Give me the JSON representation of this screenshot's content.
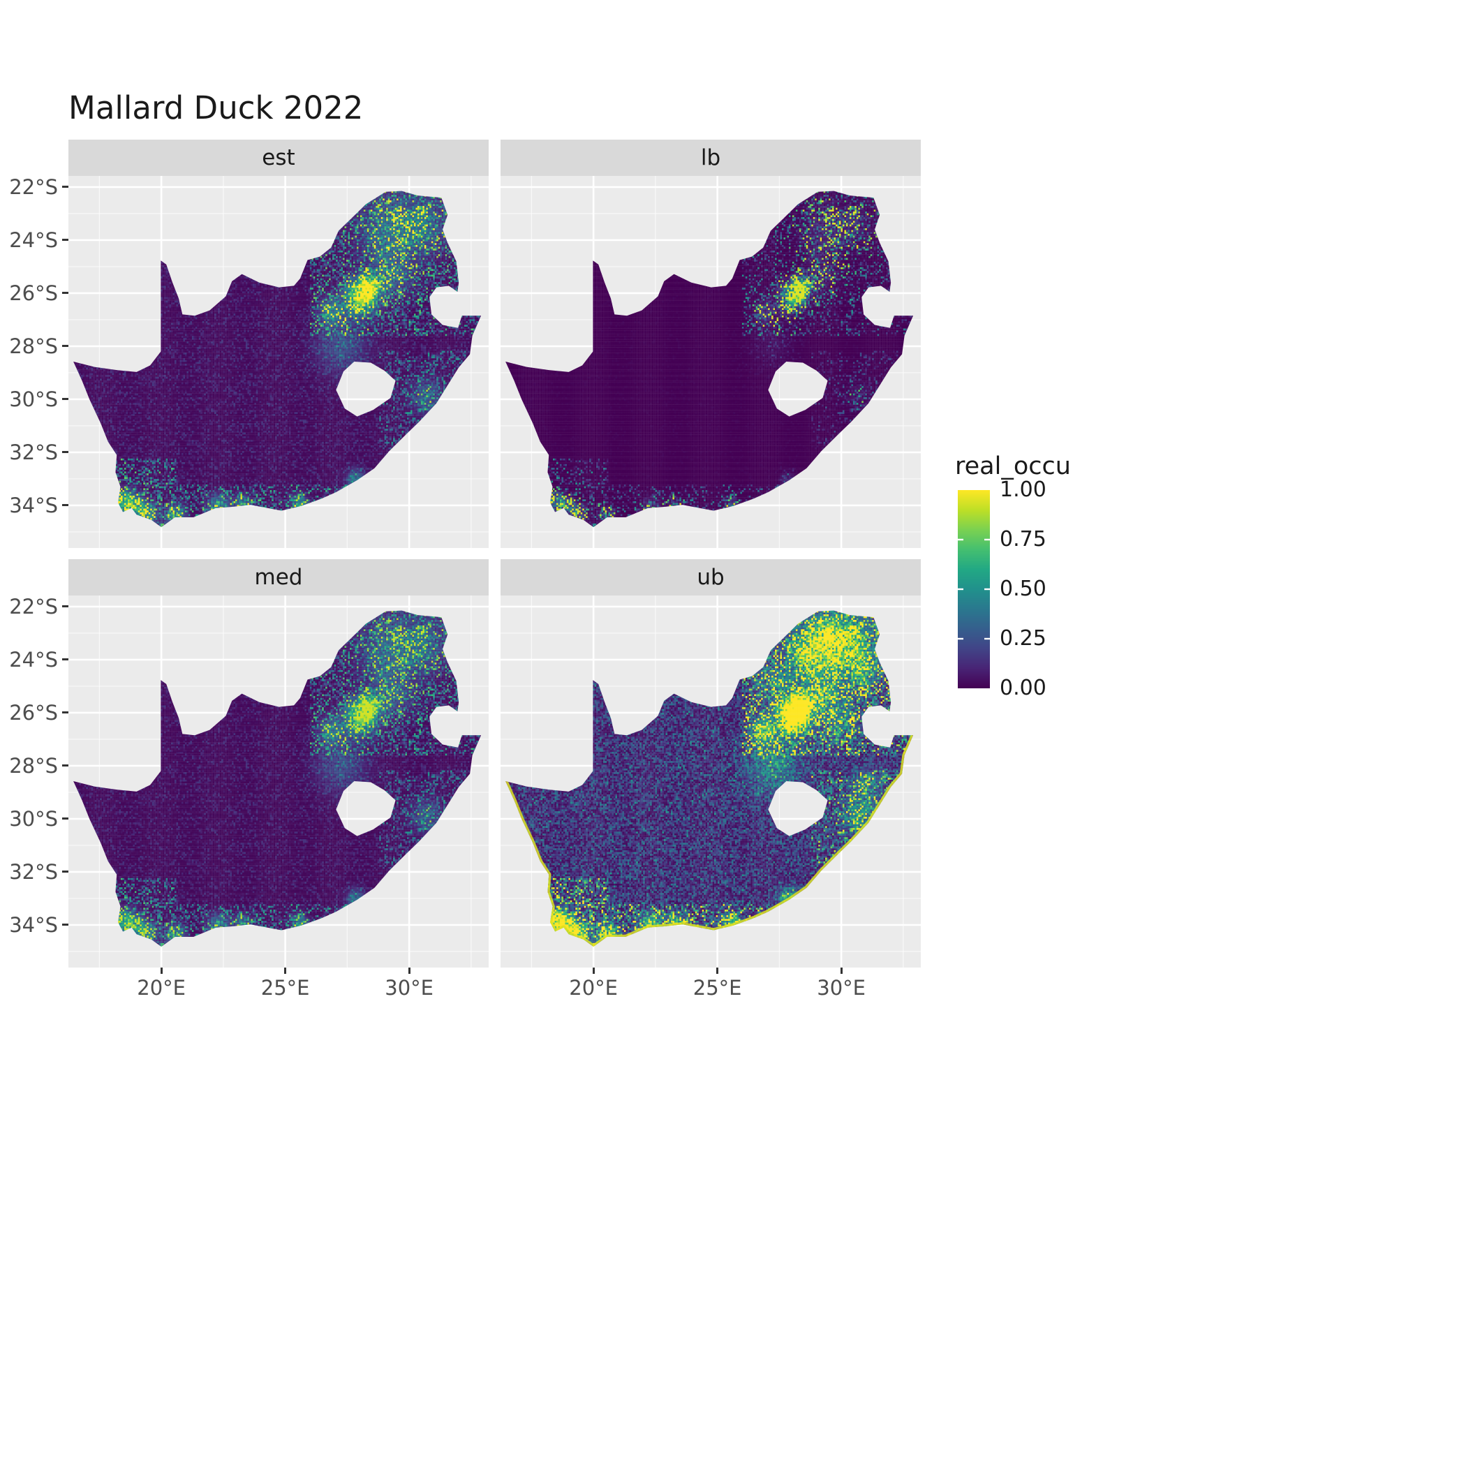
{
  "chart": {
    "title": "Mallard Duck 2022",
    "facets": [
      {
        "label": "est"
      },
      {
        "label": "lb"
      },
      {
        "label": "med"
      },
      {
        "label": "ub"
      }
    ],
    "axes": {
      "y_ticks": [
        "22°S",
        "24°S",
        "26°S",
        "28°S",
        "30°S",
        "32°S",
        "34°S"
      ],
      "x_ticks": [
        "20°E",
        "25°E",
        "30°E"
      ]
    },
    "legend": {
      "title": "real_occu",
      "ticks": [
        "1.00",
        "0.75",
        "0.50",
        "0.25",
        "0.00"
      ]
    }
  },
  "theme": {
    "panel_background": "#EBEBEB",
    "strip_background": "#D9D9D9",
    "grid_color": "#FFFFFF",
    "axis_text_color": "#4D4D4D",
    "tick_mark_color": "#333333",
    "title_color": "#1A1A1A",
    "viridis_low": "#440154",
    "viridis_high": "#FDE725",
    "coast_rim_color": "#DDDF21"
  },
  "chart_data": {
    "type": "heatmap",
    "title": "Mallard Duck 2022",
    "region": "South Africa (Lesotho shown as a hole in the raster)",
    "facets": [
      "est",
      "lb",
      "med",
      "ub"
    ],
    "fill_variable": "real_occu",
    "fill_range": [
      0.0,
      1.0
    ],
    "legend_breaks": [
      1.0,
      0.75,
      0.5,
      0.25,
      0.0
    ],
    "colormap": "viridis",
    "x_axis": {
      "label_suffix": "°E",
      "breaks": [
        20,
        25,
        30
      ],
      "range": [
        16.3,
        33.2
      ]
    },
    "y_axis": {
      "label_suffix": "°S",
      "breaks": [
        22,
        24,
        26,
        28,
        30,
        32,
        34
      ],
      "range": [
        21.6,
        35.6
      ]
    },
    "hotspots": [
      {
        "name": "Gauteng (Johannesburg/Pretoria)",
        "lon_e": 28.1,
        "lat_s": 26.1,
        "peak_real_occu": 1.0,
        "present_in": [
          "est",
          "lb",
          "med",
          "ub"
        ]
      },
      {
        "name": "Cape Town / south-western coast",
        "lon_e": 18.7,
        "lat_s": 33.9,
        "peak_real_occu": 0.9,
        "present_in": [
          "est",
          "lb",
          "med",
          "ub"
        ]
      },
      {
        "name": "Southern Cape coastline",
        "lon_e": 22.4,
        "lat_s": 34.0,
        "peak_real_occu": 0.6,
        "present_in": [
          "est",
          "med",
          "ub"
        ]
      },
      {
        "name": "North-eastern Limpopo/Mpumalanga scatter",
        "lon_e": 29.5,
        "lat_s": 23.5,
        "peak_real_occu": 0.5,
        "present_in": [
          "est",
          "med",
          "ub"
        ]
      },
      {
        "name": "KwaZulu-Natal coast",
        "lon_e": 30.7,
        "lat_s": 29.9,
        "peak_real_occu": 0.4,
        "present_in": [
          "est",
          "med",
          "ub"
        ]
      }
    ],
    "facet_summaries": {
      "est": "Estimate: mostly near 0 (dark purple) with bright hotspots at Gauteng and along the south-western and southern coast",
      "lb": "Lower bound: near 0 everywhere except the Gauteng core and a few coastal cells",
      "med": "Median: pattern very similar to the estimate",
      "ub": "Upper bound: broadly elevated values, dense green mottling in the north-east and a bright yellow rim along the coastline"
    }
  }
}
